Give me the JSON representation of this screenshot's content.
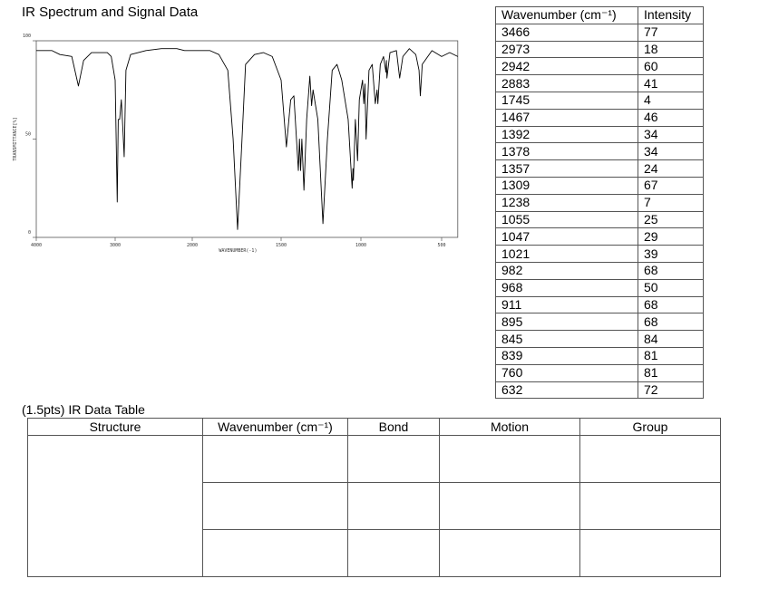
{
  "title": "IR Spectrum and Signal Data",
  "chart_data": {
    "type": "line",
    "xlabel": "WAVENUMBER(-1)",
    "ylabel": "TRANSMITTANCE[%]",
    "x": [
      4000,
      3800,
      3700,
      3550,
      3466,
      3400,
      3300,
      3100,
      3050,
      3000,
      2973,
      2960,
      2942,
      2920,
      2900,
      2883,
      2860,
      2800,
      2600,
      2400,
      2200,
      2100,
      2000,
      1900,
      1850,
      1800,
      1770,
      1745,
      1720,
      1700,
      1650,
      1600,
      1550,
      1500,
      1467,
      1440,
      1420,
      1392,
      1385,
      1378,
      1370,
      1357,
      1340,
      1320,
      1309,
      1300,
      1270,
      1238,
      1210,
      1180,
      1150,
      1120,
      1080,
      1055,
      1050,
      1047,
      1035,
      1021,
      1010,
      990,
      982,
      975,
      968,
      950,
      930,
      911,
      900,
      895,
      880,
      860,
      845,
      842,
      839,
      820,
      780,
      760,
      740,
      700,
      660,
      640,
      632,
      620,
      560,
      500,
      450,
      400
    ],
    "series": [
      {
        "color": "#000000",
        "values": [
          95,
          95,
          93,
          92,
          77,
          90,
          94,
          94,
          92,
          80,
          18,
          60,
          60,
          70,
          55,
          41,
          85,
          93,
          95,
          96,
          96,
          95,
          95,
          95,
          93,
          85,
          50,
          4,
          50,
          88,
          93,
          94,
          92,
          80,
          46,
          70,
          72,
          34,
          50,
          34,
          50,
          24,
          60,
          82,
          67,
          75,
          60,
          7,
          50,
          85,
          88,
          80,
          60,
          25,
          35,
          29,
          60,
          39,
          70,
          80,
          68,
          78,
          50,
          85,
          88,
          68,
          75,
          68,
          88,
          92,
          84,
          90,
          81,
          94,
          95,
          81,
          92,
          96,
          93,
          85,
          72,
          88,
          95,
          92,
          94,
          92
        ]
      }
    ],
    "xlim": [
      4000,
      400
    ],
    "ylim": [
      0,
      100
    ],
    "xticks": [
      4000,
      3000,
      2000,
      1500,
      1000,
      500
    ],
    "yticks": [
      0,
      50,
      100
    ]
  },
  "signal_table": {
    "columns": [
      "Wavenumber (cm⁻¹)",
      "Intensity"
    ],
    "rows": [
      [
        3466,
        77
      ],
      [
        2973,
        18
      ],
      [
        2942,
        60
      ],
      [
        2883,
        41
      ],
      [
        1745,
        4
      ],
      [
        1467,
        46
      ],
      [
        1392,
        34
      ],
      [
        1378,
        34
      ],
      [
        1357,
        24
      ],
      [
        1309,
        67
      ],
      [
        1238,
        7
      ],
      [
        1055,
        25
      ],
      [
        1047,
        29
      ],
      [
        1021,
        39
      ],
      [
        982,
        68
      ],
      [
        968,
        50
      ],
      [
        911,
        68
      ],
      [
        895,
        68
      ],
      [
        845,
        84
      ],
      [
        839,
        81
      ],
      [
        760,
        81
      ],
      [
        632,
        72
      ]
    ]
  },
  "data_table": {
    "caption": "(1.5pts) IR Data Table",
    "columns": [
      "Structure",
      "Wavenumber (cm⁻¹)",
      "Bond",
      "Motion",
      "Group"
    ]
  }
}
